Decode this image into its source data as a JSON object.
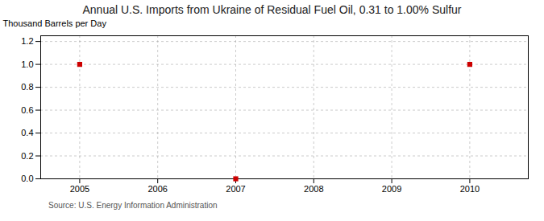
{
  "chart_data": {
    "type": "scatter",
    "title": "Annual U.S. Imports from Ukraine of Residual Fuel Oil, 0.31 to 1.00% Sulfur",
    "ylabel": "Thousand Barrels per Day",
    "source": "Source: U.S. Energy Information Administration",
    "x": [
      2005,
      2007,
      2010
    ],
    "values": [
      1.0,
      0.0,
      1.0
    ],
    "color": "#CC0000",
    "marker": "square",
    "xlim": [
      2004.5,
      2010.75
    ],
    "ylim": [
      0.0,
      1.25
    ],
    "xticks": [
      2005,
      2006,
      2007,
      2008,
      2009,
      2010
    ],
    "yticks": [
      {
        "value": 0.0,
        "label": "0.0"
      },
      0.2,
      0.4,
      0.6,
      0.8,
      {
        "value": 1.0,
        "label": "1.0"
      },
      1.2
    ],
    "grid": true
  }
}
